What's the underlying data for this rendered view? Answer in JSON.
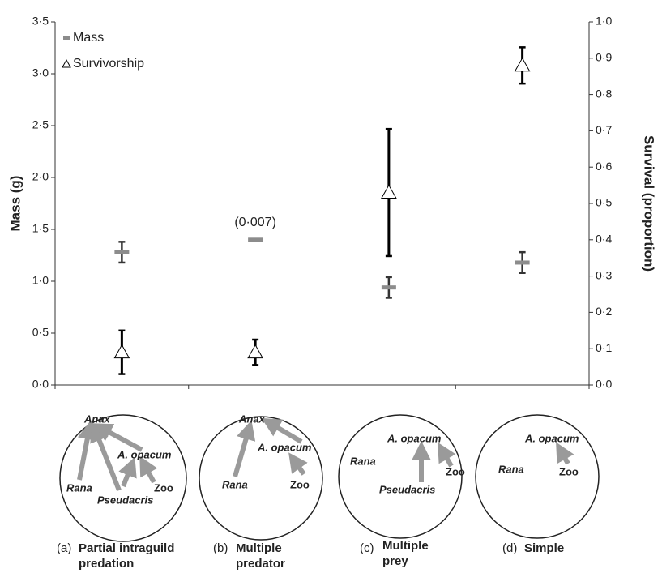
{
  "chart_data": {
    "type": "errorbar",
    "categories": [
      null,
      null,
      null,
      null
    ],
    "ylabel": "Mass (g)",
    "y2label": "Survival (proportion)",
    "ylim": [
      0,
      3.5
    ],
    "yticks": [
      {
        "value": 0,
        "label": "0·0"
      },
      {
        "value": 0.5,
        "label": "0·5"
      },
      {
        "value": 1,
        "label": "1·0"
      },
      {
        "value": 1.5,
        "label": "1·5"
      },
      {
        "value": 2,
        "label": "2·0"
      },
      {
        "value": 2.5,
        "label": "2·5"
      },
      {
        "value": 3,
        "label": "3·0"
      },
      {
        "value": 3.5,
        "label": "3·5"
      }
    ],
    "y2lim": [
      0,
      1
    ],
    "y2ticks": [
      {
        "value": 0,
        "label": "0·0"
      },
      {
        "value": 0.1,
        "label": "0·1"
      },
      {
        "value": 0.2,
        "label": "0·2"
      },
      {
        "value": 0.3,
        "label": "0·3"
      },
      {
        "value": 0.4,
        "label": "0·4"
      },
      {
        "value": 0.5,
        "label": "0·5"
      },
      {
        "value": 0.6,
        "label": "0·6"
      },
      {
        "value": 0.7,
        "label": "0·7"
      },
      {
        "value": 0.8,
        "label": "0·8"
      },
      {
        "value": 0.9,
        "label": "0·9"
      },
      {
        "value": 1,
        "label": "1·0"
      }
    ],
    "legend": "upper left",
    "series": [
      {
        "name": "Mass",
        "color": "#8c8c8c",
        "marker": "dash",
        "values": [
          1.28,
          1.4,
          0.94,
          1.18
        ],
        "errors": [
          0.1,
          0.007,
          0.1,
          0.1
        ],
        "error_labels": [
          null,
          "(0·007)",
          null,
          null
        ]
      },
      {
        "name": "Survivorship",
        "color": "#000000",
        "marker": "triangle",
        "axis": "y2",
        "values": [
          0.09,
          0.09,
          0.53,
          0.88
        ],
        "errors": [
          0.06,
          0.035,
          0.175,
          0.05
        ]
      }
    ]
  },
  "diagrams": [
    {
      "letter": "(a)",
      "title": [
        "Partial intraguild",
        "predation"
      ],
      "nodes": [
        "Anax",
        "A. opacum",
        "Rana",
        "Pseudacris",
        "Zoo"
      ]
    },
    {
      "letter": "(b)",
      "title": [
        "Multiple",
        "predator"
      ],
      "nodes": [
        "Anax",
        "A. opacum",
        "Rana",
        "Zoo"
      ]
    },
    {
      "letter": "(c)",
      "title": [
        "Multiple",
        "prey"
      ],
      "nodes": [
        "A. opacum",
        "Rana",
        "Pseudacris",
        "Zoo"
      ]
    },
    {
      "letter": "(d)",
      "title": [
        "Simple"
      ],
      "nodes": [
        "A. opacum",
        "Rana",
        "Zoo"
      ]
    }
  ]
}
